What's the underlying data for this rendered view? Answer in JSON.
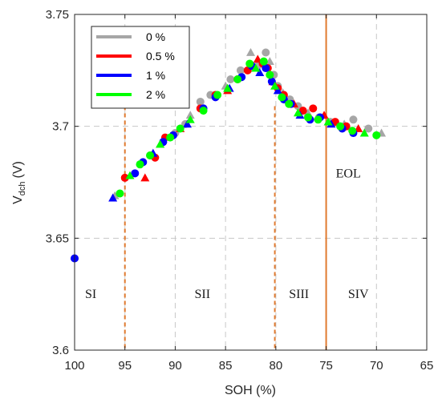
{
  "chart_data": {
    "type": "scatter",
    "xlabel": "SOH (%)",
    "ylabel_main": "V",
    "ylabel_sub": "dch",
    "ylabel_unit": "(V)",
    "xlim": [
      100,
      65
    ],
    "ylim": [
      3.6,
      3.75
    ],
    "xticks": [
      100,
      95,
      90,
      85,
      80,
      75,
      70,
      65
    ],
    "yticks": [
      3.6,
      3.65,
      3.7,
      3.75
    ],
    "x_tick_labels": [
      "100",
      "95",
      "90",
      "85",
      "80",
      "75",
      "70",
      "65"
    ],
    "y_tick_labels": [
      "3.6",
      "3.65",
      "3.7",
      "3.75"
    ],
    "grid": "dashed",
    "legend_position": "top-left",
    "legend": [
      {
        "label": "0 %",
        "color": "#a6a6a6"
      },
      {
        "label": "0.5 %",
        "color": "#ff0000"
      },
      {
        "label": "1 %",
        "color": "#0000ff"
      },
      {
        "label": "2 %",
        "color": "#00ff00"
      }
    ],
    "annotations": {
      "stage_labels": [
        {
          "text": "SI",
          "x": 98.4,
          "y": 3.625
        },
        {
          "text": "SII",
          "x": 87.3,
          "y": 3.625
        },
        {
          "text": "SIII",
          "x": 77.7,
          "y": 3.625
        },
        {
          "text": "SIV",
          "x": 71.8,
          "y": 3.625
        }
      ],
      "eol_label": {
        "text": "EOL",
        "x": 72.8,
        "y": 3.679
      },
      "dashed_dividers": [
        95.0,
        80.1
      ],
      "eol_line": 75.0,
      "line_color": "#e07a2f"
    },
    "series": [
      {
        "name": "0 %",
        "color": "#a6a6a6",
        "points": [
          [
            100.0,
            3.641
          ],
          [
            96.0,
            3.669
          ],
          [
            93.5,
            3.683
          ],
          [
            92.5,
            3.687
          ],
          [
            91.5,
            3.692
          ],
          [
            90.0,
            3.697
          ],
          [
            89.0,
            3.701
          ],
          [
            88.5,
            3.705
          ],
          [
            87.5,
            3.711
          ],
          [
            86.5,
            3.714
          ],
          [
            85.0,
            3.718
          ],
          [
            84.5,
            3.721
          ],
          [
            83.5,
            3.725
          ],
          [
            82.5,
            3.733
          ],
          [
            81.8,
            3.727
          ],
          [
            81.0,
            3.733
          ],
          [
            80.6,
            3.729
          ],
          [
            80.2,
            3.723
          ],
          [
            79.8,
            3.718
          ],
          [
            79.3,
            3.715
          ],
          [
            78.6,
            3.712
          ],
          [
            77.8,
            3.709
          ],
          [
            76.8,
            3.706
          ],
          [
            75.7,
            3.704
          ],
          [
            74.6,
            3.702
          ],
          [
            73.2,
            3.701
          ],
          [
            72.3,
            3.703
          ],
          [
            70.8,
            3.699
          ],
          [
            69.5,
            3.697
          ]
        ]
      },
      {
        "name": "0.5 %",
        "color": "#ff0000",
        "points": [
          [
            95.0,
            3.677
          ],
          [
            93.0,
            3.677
          ],
          [
            92.0,
            3.686
          ],
          [
            91.0,
            3.695
          ],
          [
            89.5,
            3.699
          ],
          [
            87.5,
            3.708
          ],
          [
            86.0,
            3.714
          ],
          [
            84.8,
            3.716
          ],
          [
            83.8,
            3.721
          ],
          [
            82.8,
            3.725
          ],
          [
            81.8,
            3.73
          ],
          [
            81.3,
            3.728
          ],
          [
            80.8,
            3.726
          ],
          [
            80.3,
            3.72
          ],
          [
            79.8,
            3.717
          ],
          [
            79.2,
            3.714
          ],
          [
            78.2,
            3.71
          ],
          [
            77.3,
            3.707
          ],
          [
            76.3,
            3.708
          ],
          [
            75.2,
            3.705
          ],
          [
            74.1,
            3.702
          ],
          [
            73.0,
            3.7
          ],
          [
            71.8,
            3.699
          ]
        ]
      },
      {
        "name": "1 %",
        "color": "#0000ff",
        "points": [
          [
            100.0,
            3.641
          ],
          [
            96.2,
            3.668
          ],
          [
            94.0,
            3.679
          ],
          [
            93.2,
            3.684
          ],
          [
            92.2,
            3.688
          ],
          [
            91.2,
            3.693
          ],
          [
            90.2,
            3.696
          ],
          [
            88.8,
            3.701
          ],
          [
            87.2,
            3.708
          ],
          [
            86.0,
            3.713
          ],
          [
            84.6,
            3.717
          ],
          [
            83.4,
            3.722
          ],
          [
            82.4,
            3.727
          ],
          [
            81.6,
            3.724
          ],
          [
            81.0,
            3.726
          ],
          [
            80.4,
            3.72
          ],
          [
            79.8,
            3.716
          ],
          [
            79.2,
            3.712
          ],
          [
            78.5,
            3.71
          ],
          [
            77.6,
            3.705
          ],
          [
            76.6,
            3.703
          ],
          [
            75.6,
            3.704
          ],
          [
            74.5,
            3.701
          ],
          [
            73.4,
            3.699
          ],
          [
            72.3,
            3.697
          ]
        ]
      },
      {
        "name": "2 %",
        "color": "#00ff00",
        "points": [
          [
            95.5,
            3.67
          ],
          [
            94.5,
            3.678
          ],
          [
            93.5,
            3.683
          ],
          [
            92.5,
            3.687
          ],
          [
            91.5,
            3.692
          ],
          [
            90.5,
            3.695
          ],
          [
            89.5,
            3.699
          ],
          [
            88.5,
            3.703
          ],
          [
            87.2,
            3.707
          ],
          [
            85.8,
            3.714
          ],
          [
            84.8,
            3.717
          ],
          [
            83.8,
            3.721
          ],
          [
            82.6,
            3.728
          ],
          [
            82.0,
            3.726
          ],
          [
            81.2,
            3.729
          ],
          [
            80.6,
            3.723
          ],
          [
            80.1,
            3.718
          ],
          [
            79.4,
            3.713
          ],
          [
            78.7,
            3.71
          ],
          [
            77.8,
            3.706
          ],
          [
            76.8,
            3.704
          ],
          [
            75.8,
            3.703
          ],
          [
            74.8,
            3.702
          ],
          [
            73.6,
            3.7
          ],
          [
            72.4,
            3.698
          ],
          [
            71.2,
            3.697
          ],
          [
            70.0,
            3.696
          ]
        ]
      }
    ]
  }
}
